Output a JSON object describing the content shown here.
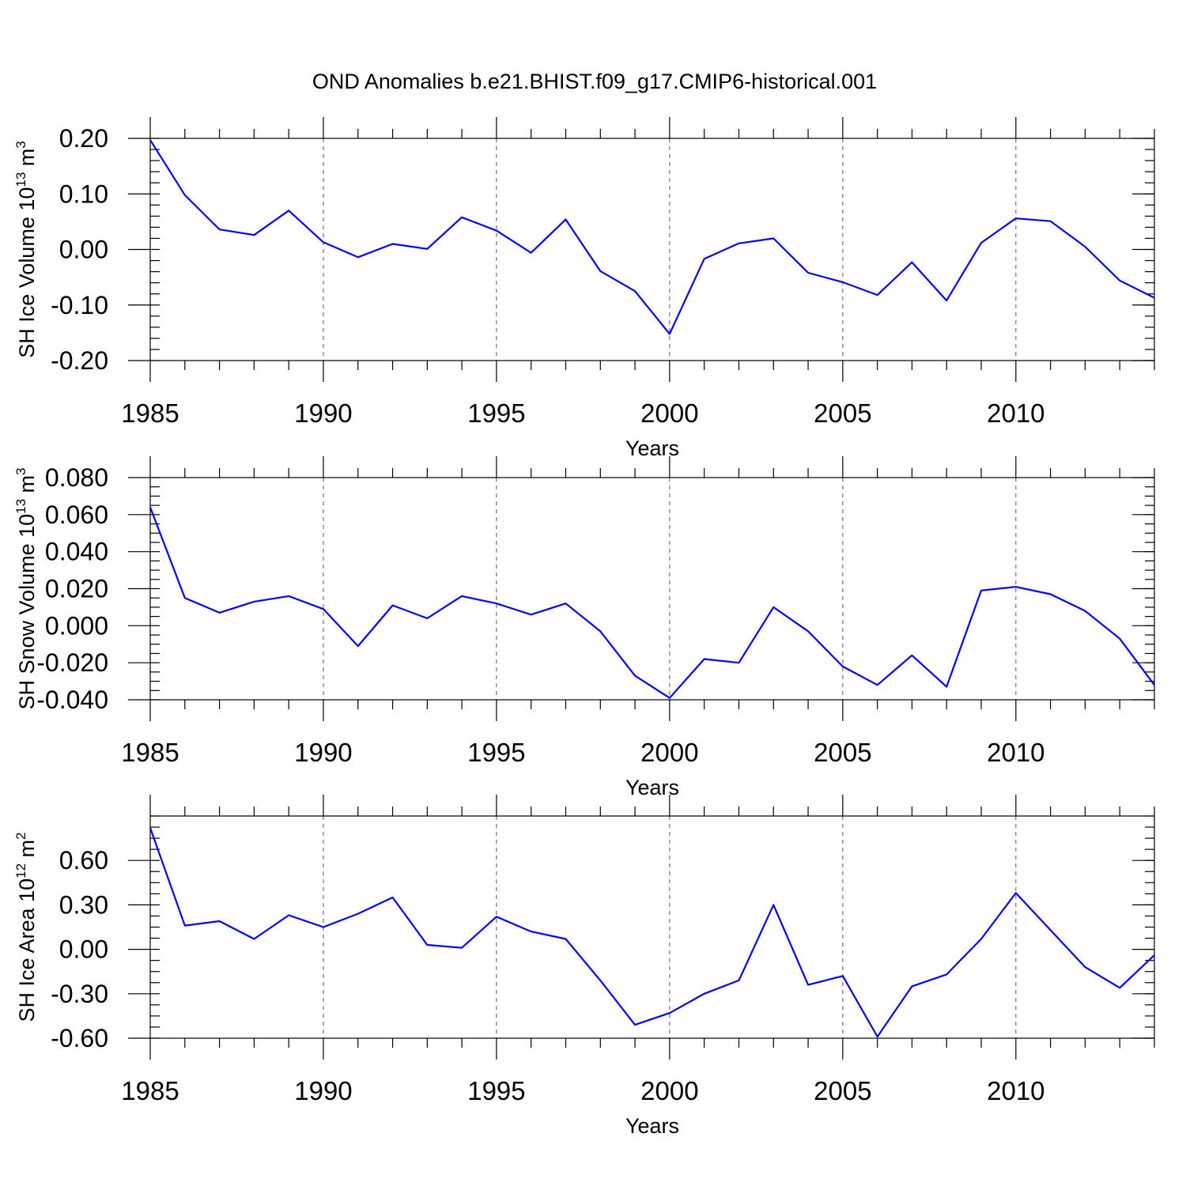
{
  "title": "OND Anomalies b.e21.BHIST.f09_g17.CMIP6-historical.001",
  "colors": {
    "line": "#0000ff",
    "axis": "#000000",
    "grid": "#555555"
  },
  "chart_data": [
    {
      "type": "line",
      "title": "OND Anomalies b.e21.BHIST.f09_g17.CMIP6-historical.001",
      "ylabel_main": "SH Ice Volume 10",
      "ylabel_exp": "13",
      "ylabel_unit": " m",
      "ylabel_unit_exp": "3",
      "xlabel": "Years",
      "xlim": [
        1985,
        2014
      ],
      "ylim": [
        -0.2,
        0.2
      ],
      "yticks": [
        -0.2,
        -0.1,
        0.0,
        0.1,
        0.2
      ],
      "ytick_labels": [
        "-0.20",
        "-0.10",
        "0.00",
        "0.10",
        "0.20"
      ],
      "yminor_step": 0.02,
      "xticks": [
        1985,
        1990,
        1995,
        2000,
        2005,
        2010
      ],
      "xtick_labels": [
        "1985",
        "1990",
        "1995",
        "2000",
        "2005",
        "2010"
      ],
      "grid_x": [
        1990,
        1995,
        2000,
        2005,
        2010
      ],
      "x": [
        1985,
        1986,
        1987,
        1988,
        1989,
        1990,
        1991,
        1992,
        1993,
        1994,
        1995,
        1996,
        1997,
        1998,
        1999,
        2000,
        2001,
        2002,
        2003,
        2004,
        2005,
        2006,
        2007,
        2008,
        2009,
        2010,
        2011,
        2012,
        2013,
        2014
      ],
      "values": [
        0.197,
        0.098,
        0.036,
        0.026,
        0.07,
        0.013,
        -0.014,
        0.01,
        0.001,
        0.058,
        0.034,
        -0.006,
        0.054,
        -0.039,
        -0.075,
        -0.152,
        -0.017,
        0.011,
        0.02,
        -0.042,
        -0.059,
        -0.082,
        -0.023,
        -0.092,
        0.012,
        0.056,
        0.051,
        0.005,
        -0.056,
        -0.087
      ]
    },
    {
      "type": "line",
      "ylabel_main": "SH Snow Volume 10",
      "ylabel_exp": "13",
      "ylabel_unit": " m",
      "ylabel_unit_exp": "3",
      "xlabel": "Years",
      "xlim": [
        1985,
        2014
      ],
      "ylim": [
        -0.04,
        0.08
      ],
      "yticks": [
        -0.04,
        -0.02,
        0.0,
        0.02,
        0.04,
        0.06,
        0.08
      ],
      "ytick_labels": [
        "-0.040",
        "-0.020",
        "0.000",
        "0.020",
        "0.040",
        "0.060",
        "0.080"
      ],
      "yminor_step": 0.005,
      "xticks": [
        1985,
        1990,
        1995,
        2000,
        2005,
        2010
      ],
      "xtick_labels": [
        "1985",
        "1990",
        "1995",
        "2000",
        "2005",
        "2010"
      ],
      "grid_x": [
        1990,
        1995,
        2000,
        2005,
        2010
      ],
      "x": [
        1985,
        1986,
        1987,
        1988,
        1989,
        1990,
        1991,
        1992,
        1993,
        1994,
        1995,
        1996,
        1997,
        1998,
        1999,
        2000,
        2001,
        2002,
        2003,
        2004,
        2005,
        2006,
        2007,
        2008,
        2009,
        2010,
        2011,
        2012,
        2013,
        2014
      ],
      "values": [
        0.064,
        0.015,
        0.007,
        0.013,
        0.016,
        0.009,
        -0.011,
        0.011,
        0.004,
        0.016,
        0.012,
        0.006,
        0.012,
        -0.003,
        -0.027,
        -0.039,
        -0.018,
        -0.02,
        0.01,
        -0.003,
        -0.022,
        -0.032,
        -0.016,
        -0.033,
        0.019,
        0.021,
        0.017,
        0.008,
        -0.007,
        -0.032
      ]
    },
    {
      "type": "line",
      "ylabel_main": "SH Ice Area 10",
      "ylabel_exp": "12",
      "ylabel_unit": " m",
      "ylabel_unit_exp": "2",
      "xlabel": "Years",
      "xlim": [
        1985,
        2014
      ],
      "ylim": [
        -0.6,
        0.9
      ],
      "yticks": [
        -0.6,
        -0.3,
        0.0,
        0.3,
        0.6
      ],
      "ytick_labels": [
        "-0.60",
        "-0.30",
        "0.00",
        "0.30",
        "0.60"
      ],
      "yminor_step": 0.075,
      "xticks": [
        1985,
        1990,
        1995,
        2000,
        2005,
        2010
      ],
      "xtick_labels": [
        "1985",
        "1990",
        "1995",
        "2000",
        "2005",
        "2010"
      ],
      "grid_x": [
        1990,
        1995,
        2000,
        2005,
        2010
      ],
      "x": [
        1985,
        1986,
        1987,
        1988,
        1989,
        1990,
        1991,
        1992,
        1993,
        1994,
        1995,
        1996,
        1997,
        1998,
        1999,
        2000,
        2001,
        2002,
        2003,
        2004,
        2005,
        2006,
        2007,
        2008,
        2009,
        2010,
        2011,
        2012,
        2013,
        2014
      ],
      "values": [
        0.82,
        0.16,
        0.19,
        0.07,
        0.23,
        0.15,
        0.24,
        0.35,
        0.03,
        0.01,
        0.22,
        0.12,
        0.07,
        -0.21,
        -0.51,
        -0.43,
        -0.3,
        -0.21,
        0.3,
        -0.24,
        -0.18,
        -0.59,
        -0.25,
        -0.17,
        0.07,
        0.38,
        0.13,
        -0.12,
        -0.26,
        -0.04
      ]
    }
  ]
}
